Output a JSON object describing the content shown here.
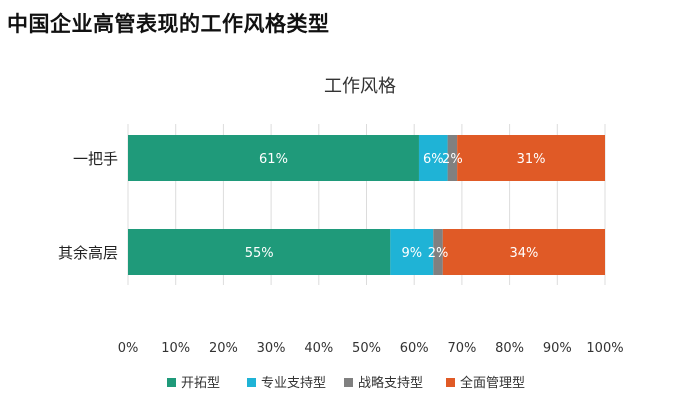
{
  "page": {
    "title": "中国企业高管表现的工作风格类型"
  },
  "chart_data": {
    "type": "bar",
    "orientation": "horizontal",
    "stacked": true,
    "title": "工作风格",
    "categories": [
      "一把手",
      "其余高层"
    ],
    "series": [
      {
        "name": "开拓型",
        "color": "#1f9a7a",
        "values": [
          61,
          55
        ],
        "labels": [
          "61%",
          "55%"
        ]
      },
      {
        "name": "专业支持型",
        "color": "#1fb3d6",
        "values": [
          6,
          9
        ],
        "labels": [
          "6%",
          "9%"
        ]
      },
      {
        "name": "战略支持型",
        "color": "#808080",
        "values": [
          2,
          2
        ],
        "labels": [
          "2%",
          "2%"
        ]
      },
      {
        "name": "全面管理型",
        "color": "#e05a26",
        "values": [
          31,
          34
        ],
        "labels": [
          "31%",
          "34%"
        ]
      }
    ],
    "xlim": [
      0,
      100
    ],
    "x_ticks": [
      "0%",
      "10%",
      "20%",
      "30%",
      "40%",
      "50%",
      "60%",
      "70%",
      "80%",
      "90%",
      "100%"
    ],
    "grid": true,
    "legend_position": "bottom"
  }
}
